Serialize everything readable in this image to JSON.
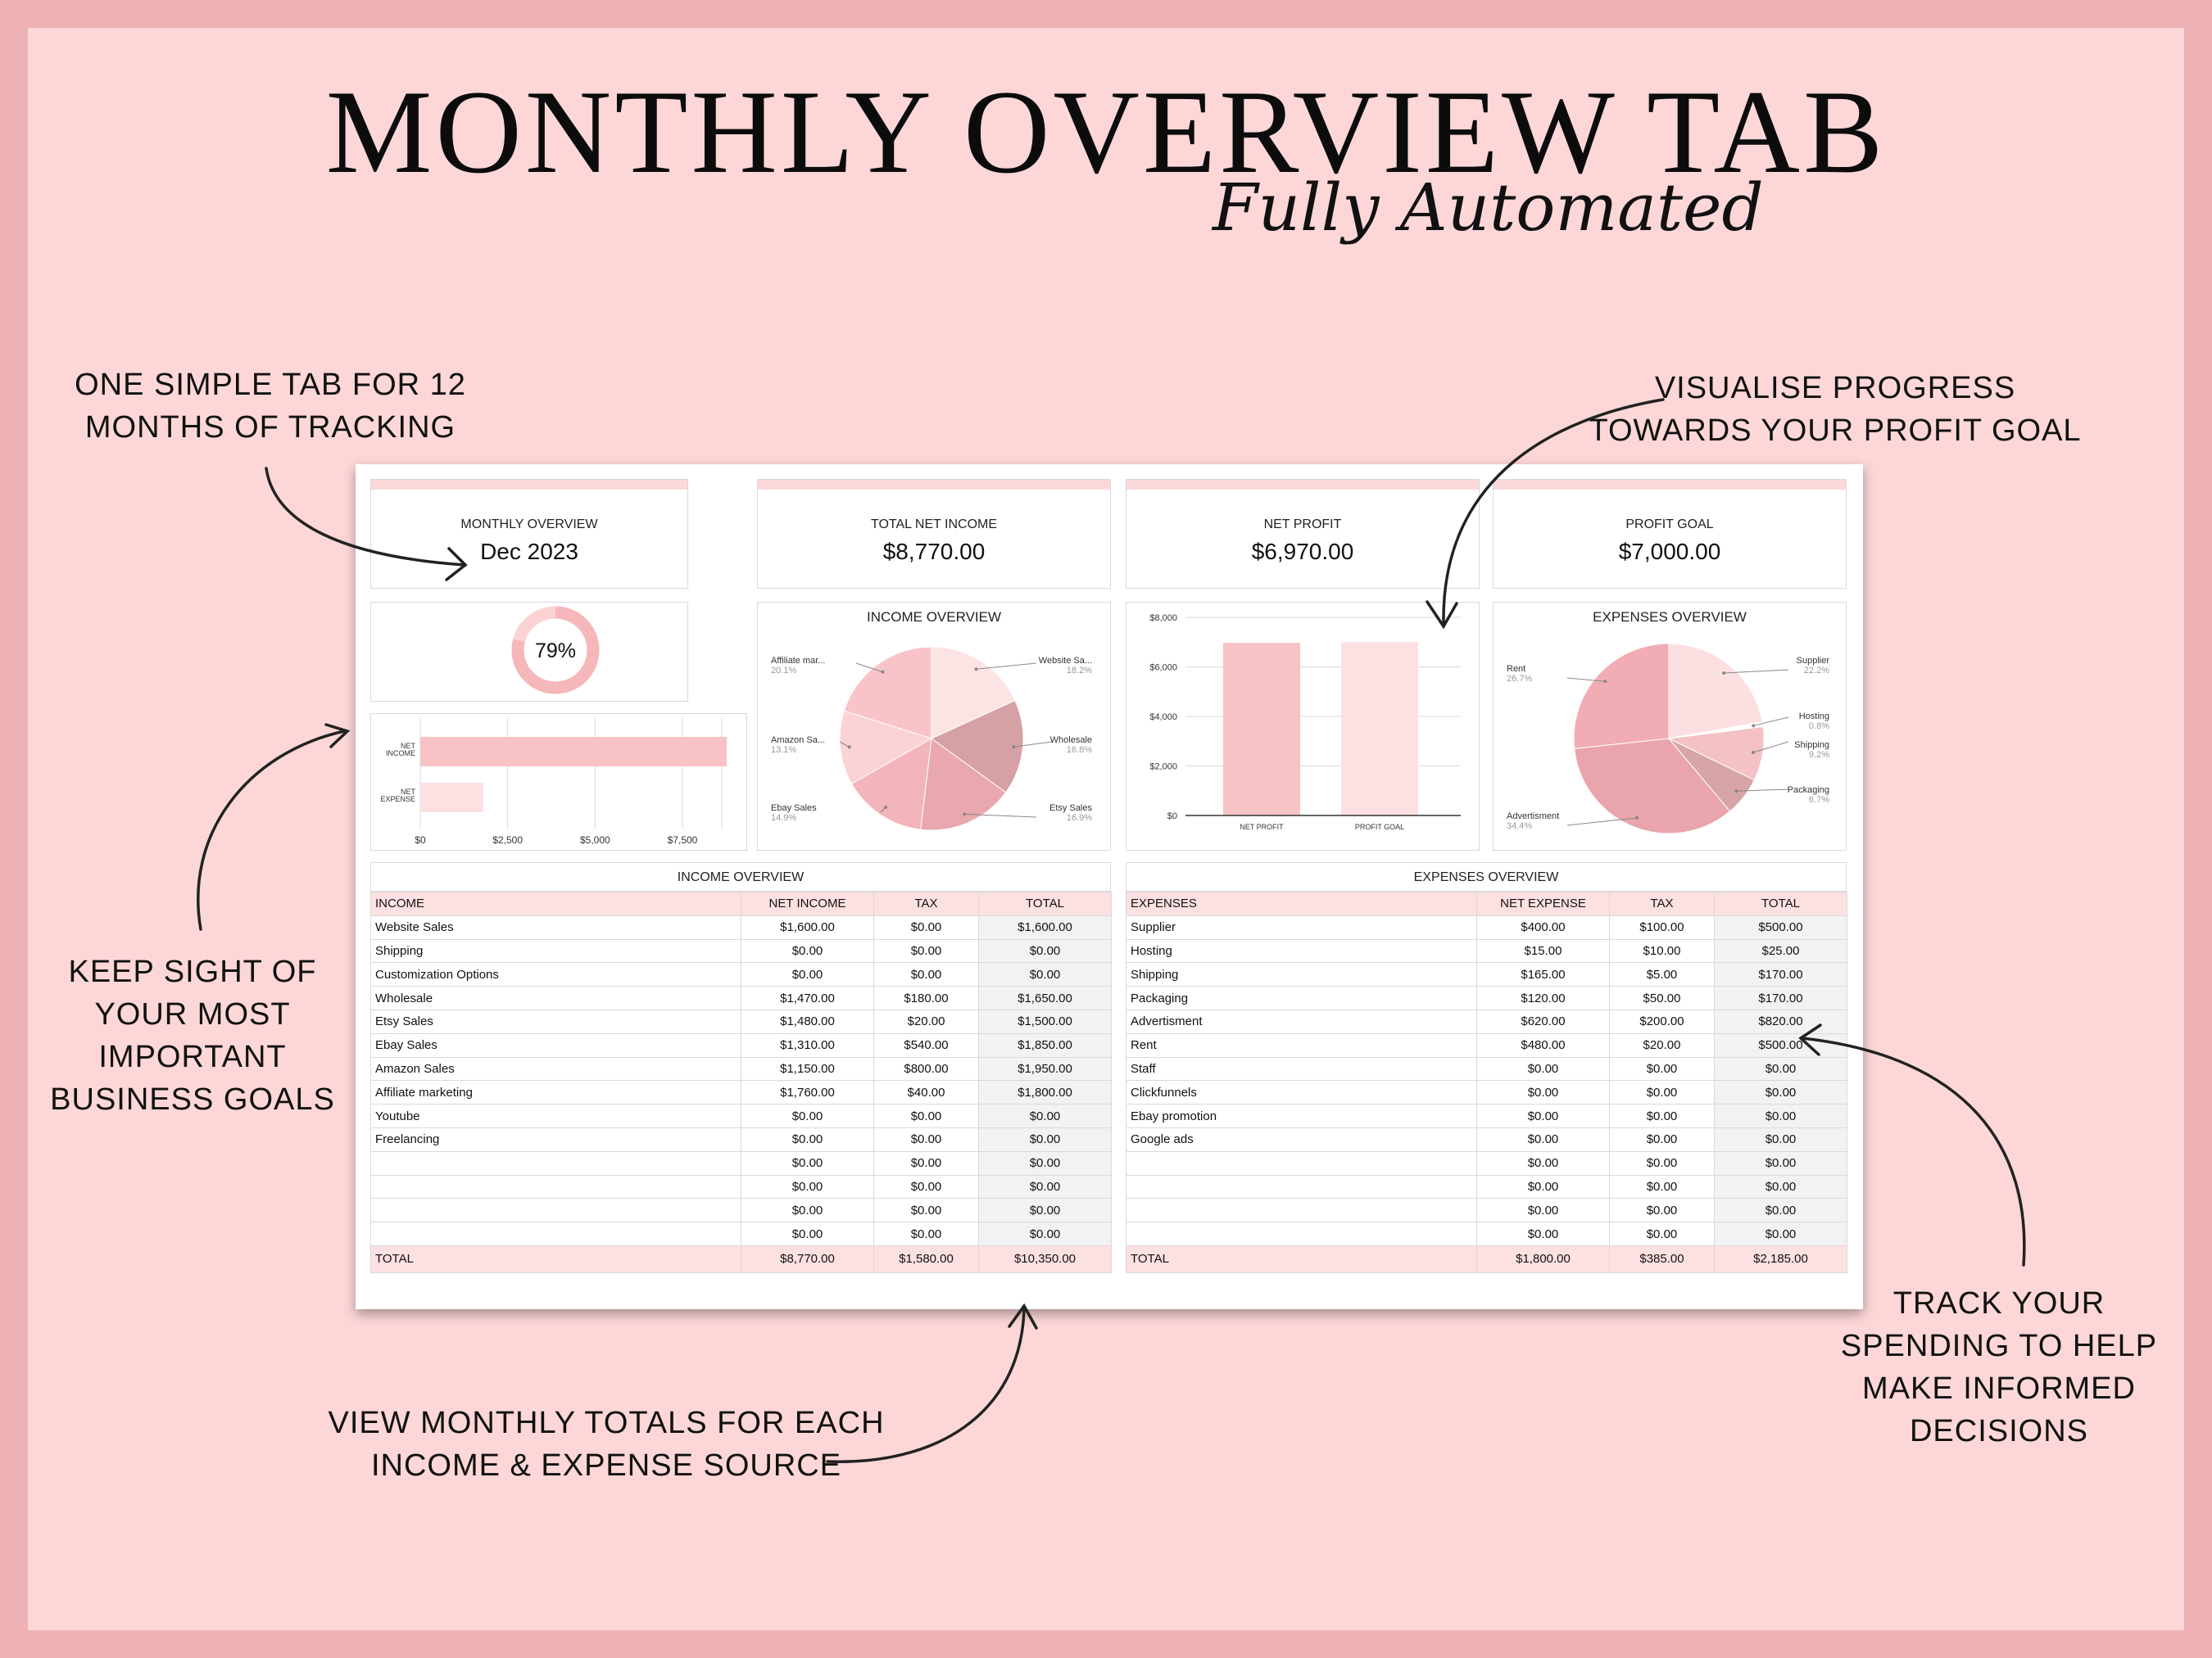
{
  "page": {
    "title": "MONTHLY OVERVIEW TAB",
    "subtitle": "Fully Automated"
  },
  "callouts": {
    "tracking": [
      "ONE SIMPLE TAB FOR 12",
      "MONTHS OF TRACKING"
    ],
    "progress": [
      "VISUALISE PROGRESS",
      "TOWARDS YOUR PROFIT GOAL"
    ],
    "goals": [
      "KEEP SIGHT OF",
      "YOUR MOST",
      "IMPORTANT",
      "BUSINESS GOALS"
    ],
    "spending": [
      "TRACK YOUR",
      "SPENDING TO HELP",
      "MAKE INFORMED",
      "DECISIONS"
    ],
    "totals": [
      "VIEW MONTHLY TOTALS FOR EACH",
      "INCOME & EXPENSE SOURCE"
    ]
  },
  "kpis": [
    {
      "label": "MONTHLY OVERVIEW",
      "value": "Dec 2023"
    },
    {
      "label": "TOTAL NET INCOME",
      "value": "$8,770.00"
    },
    {
      "label": "NET PROFIT",
      "value": "$6,970.00"
    },
    {
      "label": "PROFIT GOAL",
      "value": "$7,000.00"
    }
  ],
  "colors": {
    "accent": "#f8c3c5",
    "frame": "#eeb1b4",
    "background": "#fdd7d8",
    "header_row": "#fde0e1"
  },
  "chart_data": [
    {
      "type": "donut",
      "value_label": "79%",
      "fraction": 0.79
    },
    {
      "type": "bar",
      "orientation": "horizontal",
      "categories": [
        "NET INCOME",
        "NET EXPENSE"
      ],
      "values": [
        8770,
        1800
      ],
      "xlim": [
        0,
        8770
      ],
      "ticks": [
        "$0",
        "$2,500",
        "$5,000",
        "$7,500"
      ]
    },
    {
      "type": "pie",
      "title": "INCOME OVERVIEW",
      "slices": [
        {
          "label": "Website Sa...",
          "pct": "18.2%",
          "value": 18.2,
          "color": "#fde3e4"
        },
        {
          "label": "Wholesale",
          "pct": "16.8%",
          "value": 16.8,
          "color": "#d6a1a4"
        },
        {
          "label": "Etsy Sales",
          "pct": "16.9%",
          "value": 16.9,
          "color": "#e9a8ad"
        },
        {
          "label": "Ebay Sales",
          "pct": "14.9%",
          "value": 14.9,
          "color": "#f3b4bb"
        },
        {
          "label": "Amazon Sa...",
          "pct": "13.1%",
          "value": 13.1,
          "color": "#fbd3d6"
        },
        {
          "label": "Affiliate mar...",
          "pct": "20.1%",
          "value": 20.1,
          "color": "#f9c4c9"
        }
      ]
    },
    {
      "type": "bar",
      "categories": [
        "NET PROFIT",
        "PROFIT GOAL"
      ],
      "values": [
        6970,
        7000
      ],
      "ylim": [
        0,
        8000
      ],
      "ticks": [
        "$0",
        "$2,000",
        "$4,000",
        "$6,000",
        "$8,000"
      ],
      "colors": [
        "#f8c3c5",
        "#fde0e1"
      ]
    },
    {
      "type": "pie",
      "title": "EXPENSES OVERVIEW",
      "slices": [
        {
          "label": "Supplier",
          "pct": "22.2%",
          "value": 22.2,
          "color": "#fcdfe0"
        },
        {
          "label": "Hosting",
          "pct": "0.8%",
          "value": 0.8,
          "color": "#ffffff"
        },
        {
          "label": "Shipping",
          "pct": "9.2%",
          "value": 9.2,
          "color": "#f4c1c4"
        },
        {
          "label": "Packaging",
          "pct": "6.7%",
          "value": 6.7,
          "color": "#d7a4a7"
        },
        {
          "label": "Advertisment",
          "pct": "34.4%",
          "value": 34.4,
          "color": "#e9a5ab"
        },
        {
          "label": "Rent",
          "pct": "26.7%",
          "value": 26.7,
          "color": "#f1adb3"
        }
      ]
    }
  ],
  "income_table": {
    "title": "INCOME OVERVIEW",
    "headers": [
      "INCOME",
      "NET INCOME",
      "TAX",
      "TOTAL"
    ],
    "rows": [
      [
        "Website Sales",
        "$1,600.00",
        "$0.00",
        "$1,600.00"
      ],
      [
        "Shipping",
        "$0.00",
        "$0.00",
        "$0.00"
      ],
      [
        "Customization Options",
        "$0.00",
        "$0.00",
        "$0.00"
      ],
      [
        "Wholesale",
        "$1,470.00",
        "$180.00",
        "$1,650.00"
      ],
      [
        "Etsy Sales",
        "$1,480.00",
        "$20.00",
        "$1,500.00"
      ],
      [
        "Ebay Sales",
        "$1,310.00",
        "$540.00",
        "$1,850.00"
      ],
      [
        "Amazon Sales",
        "$1,150.00",
        "$800.00",
        "$1,950.00"
      ],
      [
        "Affiliate marketing",
        "$1,760.00",
        "$40.00",
        "$1,800.00"
      ],
      [
        "Youtube",
        "$0.00",
        "$0.00",
        "$0.00"
      ],
      [
        "Freelancing",
        "$0.00",
        "$0.00",
        "$0.00"
      ],
      [
        "",
        "$0.00",
        "$0.00",
        "$0.00"
      ],
      [
        "",
        "$0.00",
        "$0.00",
        "$0.00"
      ],
      [
        "",
        "$0.00",
        "$0.00",
        "$0.00"
      ],
      [
        "",
        "$0.00",
        "$0.00",
        "$0.00"
      ]
    ],
    "total": [
      "TOTAL",
      "$8,770.00",
      "$1,580.00",
      "$10,350.00"
    ]
  },
  "expense_table": {
    "title": "EXPENSES OVERVIEW",
    "headers": [
      "EXPENSES",
      "NET EXPENSE",
      "TAX",
      "TOTAL"
    ],
    "rows": [
      [
        "Supplier",
        "$400.00",
        "$100.00",
        "$500.00"
      ],
      [
        "Hosting",
        "$15.00",
        "$10.00",
        "$25.00"
      ],
      [
        "Shipping",
        "$165.00",
        "$5.00",
        "$170.00"
      ],
      [
        "Packaging",
        "$120.00",
        "$50.00",
        "$170.00"
      ],
      [
        "Advertisment",
        "$620.00",
        "$200.00",
        "$820.00"
      ],
      [
        "Rent",
        "$480.00",
        "$20.00",
        "$500.00"
      ],
      [
        "Staff",
        "$0.00",
        "$0.00",
        "$0.00"
      ],
      [
        "Clickfunnels",
        "$0.00",
        "$0.00",
        "$0.00"
      ],
      [
        "Ebay promotion",
        "$0.00",
        "$0.00",
        "$0.00"
      ],
      [
        "Google ads",
        "$0.00",
        "$0.00",
        "$0.00"
      ],
      [
        "",
        "$0.00",
        "$0.00",
        "$0.00"
      ],
      [
        "",
        "$0.00",
        "$0.00",
        "$0.00"
      ],
      [
        "",
        "$0.00",
        "$0.00",
        "$0.00"
      ],
      [
        "",
        "$0.00",
        "$0.00",
        "$0.00"
      ]
    ],
    "total": [
      "TOTAL",
      "$1,800.00",
      "$385.00",
      "$2,185.00"
    ]
  }
}
